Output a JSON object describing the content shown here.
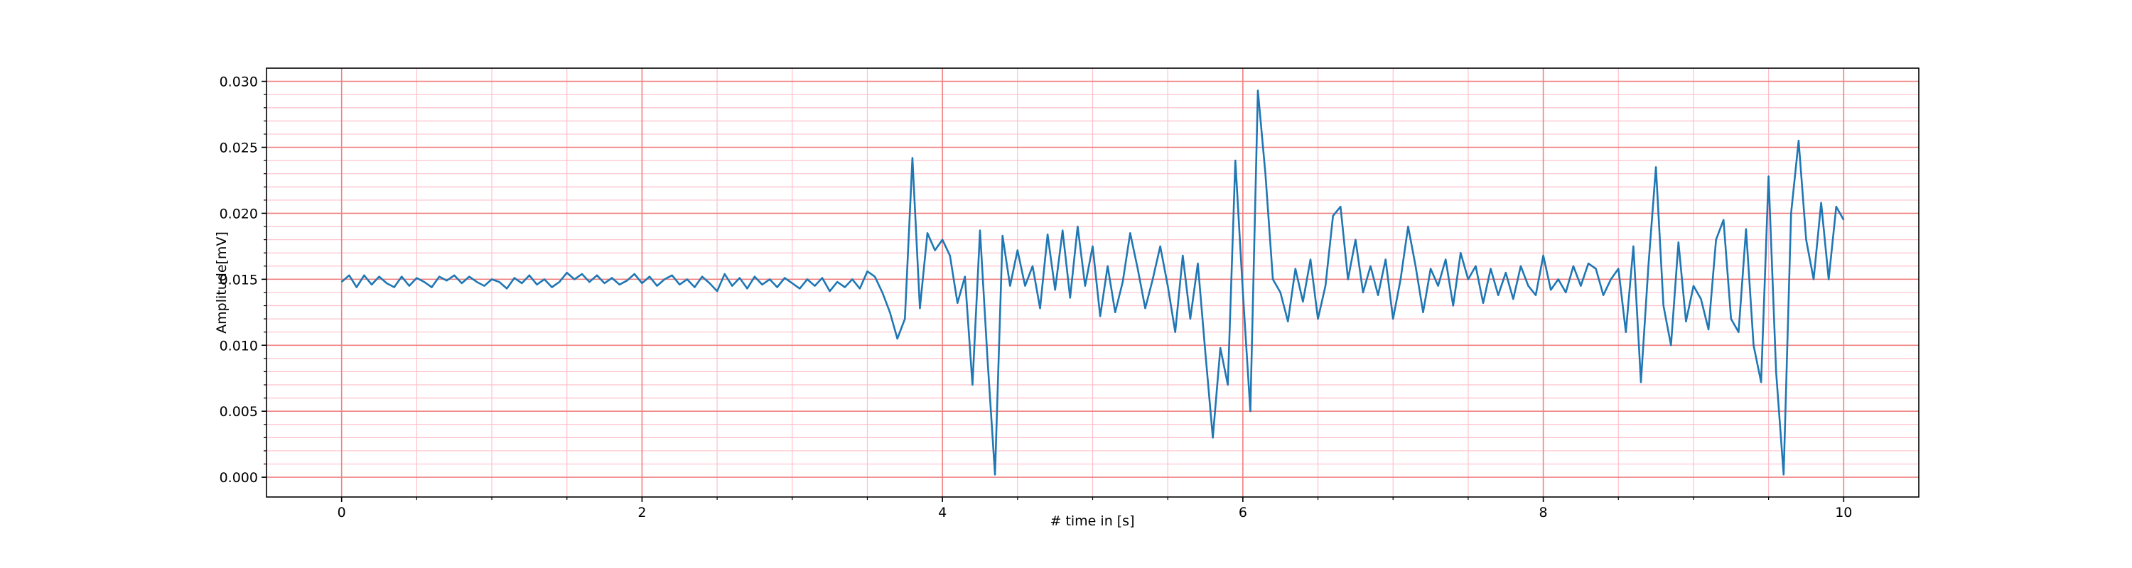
{
  "chart_data": {
    "type": "line",
    "xlabel": "# time in [s]",
    "ylabel": "Amplitude[mV]",
    "x": [
      0,
      0.05,
      0.1,
      0.15,
      0.2,
      0.25,
      0.3,
      0.35,
      0.4,
      0.45,
      0.5,
      0.55,
      0.6,
      0.65,
      0.7,
      0.75,
      0.8,
      0.85,
      0.9,
      0.95,
      1,
      1.05,
      1.1,
      1.15,
      1.2,
      1.25,
      1.3,
      1.35,
      1.4,
      1.45,
      1.5,
      1.55,
      1.6,
      1.65,
      1.7,
      1.75,
      1.8,
      1.85,
      1.9,
      1.95,
      2,
      2.05,
      2.1,
      2.15,
      2.2,
      2.25,
      2.3,
      2.35,
      2.4,
      2.45,
      2.5,
      2.55,
      2.6,
      2.65,
      2.7,
      2.75,
      2.8,
      2.85,
      2.9,
      2.95,
      3,
      3.05,
      3.1,
      3.15,
      3.2,
      3.25,
      3.3,
      3.35,
      3.4,
      3.45,
      3.5,
      3.55,
      3.6,
      3.65,
      3.7,
      3.75,
      3.8,
      3.85,
      3.9,
      3.95,
      4,
      4.05,
      4.1,
      4.15,
      4.2,
      4.25,
      4.3,
      4.35,
      4.4,
      4.45,
      4.5,
      4.55,
      4.6,
      4.65,
      4.7,
      4.75,
      4.8,
      4.85,
      4.9,
      4.95,
      5,
      5.05,
      5.1,
      5.15,
      5.2,
      5.25,
      5.3,
      5.35,
      5.4,
      5.45,
      5.5,
      5.55,
      5.6,
      5.65,
      5.7,
      5.75,
      5.8,
      5.85,
      5.9,
      5.95,
      6,
      6.05,
      6.1,
      6.15,
      6.2,
      6.25,
      6.3,
      6.35,
      6.4,
      6.45,
      6.5,
      6.55,
      6.6,
      6.65,
      6.7,
      6.75,
      6.8,
      6.85,
      6.9,
      6.95,
      7,
      7.05,
      7.1,
      7.15,
      7.2,
      7.25,
      7.3,
      7.35,
      7.4,
      7.45,
      7.5,
      7.55,
      7.6,
      7.65,
      7.7,
      7.75,
      7.8,
      7.85,
      7.9,
      7.95,
      8,
      8.05,
      8.1,
      8.15,
      8.2,
      8.25,
      8.3,
      8.35,
      8.4,
      8.45,
      8.5,
      8.55,
      8.6,
      8.65,
      8.7,
      8.75,
      8.8,
      8.85,
      8.9,
      8.95,
      9,
      9.05,
      9.1,
      9.15,
      9.2,
      9.25,
      9.3,
      9.35,
      9.4,
      9.45,
      9.5,
      9.55,
      9.6,
      9.65,
      9.7,
      9.75,
      9.8,
      9.85,
      9.9,
      9.95,
      10
    ],
    "series": [
      {
        "color": "#1f77b4",
        "values": [
          0.0148,
          0.0153,
          0.0144,
          0.0153,
          0.0146,
          0.0152,
          0.0147,
          0.0144,
          0.0152,
          0.0145,
          0.0151,
          0.0148,
          0.0144,
          0.0152,
          0.0149,
          0.0153,
          0.0147,
          0.0152,
          0.0148,
          0.0145,
          0.015,
          0.0148,
          0.0143,
          0.0151,
          0.0147,
          0.0153,
          0.0146,
          0.015,
          0.0144,
          0.0148,
          0.0155,
          0.015,
          0.0154,
          0.0148,
          0.0153,
          0.0147,
          0.0151,
          0.0146,
          0.0149,
          0.0154,
          0.0147,
          0.0152,
          0.0145,
          0.015,
          0.0153,
          0.0146,
          0.015,
          0.0144,
          0.0152,
          0.0147,
          0.0141,
          0.0154,
          0.0145,
          0.0151,
          0.0143,
          0.0152,
          0.0146,
          0.015,
          0.0144,
          0.0151,
          0.0147,
          0.0143,
          0.015,
          0.0145,
          0.0151,
          0.0141,
          0.0148,
          0.0144,
          0.015,
          0.0143,
          0.0156,
          0.0152,
          0.014,
          0.0125,
          0.0105,
          0.012,
          0.0242,
          0.0128,
          0.0185,
          0.0172,
          0.018,
          0.0168,
          0.0132,
          0.0152,
          0.007,
          0.0187,
          0.009,
          0.0002,
          0.0183,
          0.0145,
          0.0172,
          0.0145,
          0.016,
          0.0128,
          0.0184,
          0.0142,
          0.0187,
          0.0136,
          0.019,
          0.0145,
          0.0175,
          0.0122,
          0.016,
          0.0125,
          0.0148,
          0.0185,
          0.0158,
          0.0128,
          0.015,
          0.0175,
          0.0145,
          0.011,
          0.0168,
          0.012,
          0.0162,
          0.0095,
          0.003,
          0.0098,
          0.007,
          0.024,
          0.014,
          0.005,
          0.0293,
          0.023,
          0.015,
          0.014,
          0.0118,
          0.0158,
          0.0133,
          0.0165,
          0.012,
          0.0145,
          0.0198,
          0.0205,
          0.015,
          0.018,
          0.014,
          0.016,
          0.0138,
          0.0165,
          0.012,
          0.015,
          0.019,
          0.016,
          0.0125,
          0.0158,
          0.0145,
          0.0165,
          0.013,
          0.017,
          0.015,
          0.016,
          0.0132,
          0.0158,
          0.0138,
          0.0155,
          0.0135,
          0.016,
          0.0145,
          0.0138,
          0.0168,
          0.0142,
          0.015,
          0.014,
          0.016,
          0.0145,
          0.0162,
          0.0158,
          0.0138,
          0.015,
          0.0158,
          0.011,
          0.0175,
          0.0072,
          0.016,
          0.0235,
          0.013,
          0.01,
          0.0178,
          0.0118,
          0.0145,
          0.0135,
          0.0112,
          0.018,
          0.0195,
          0.012,
          0.011,
          0.0188,
          0.01,
          0.0072,
          0.0228,
          0.008,
          0.0002,
          0.02,
          0.0255,
          0.018,
          0.015,
          0.0208,
          0.015,
          0.0205,
          0.0195
        ]
      }
    ],
    "xlim": [
      -0.5,
      10.5
    ],
    "ylim": [
      -0.0015,
      0.031
    ],
    "xticks": [
      0,
      2,
      4,
      6,
      8,
      10
    ],
    "yticks": [
      {
        "value": 0,
        "label": "0.000"
      },
      0.005,
      {
        "value": 0.01,
        "label": "0.010"
      },
      0.015,
      {
        "value": 0.02,
        "label": "0.020"
      },
      0.025,
      {
        "value": 0.03,
        "label": "0.030"
      }
    ],
    "xminorticks": [
      0.5,
      1,
      1.5,
      2.5,
      3,
      3.5,
      4.5,
      5,
      5.5,
      6.5,
      7,
      7.5,
      8.5,
      9,
      9.5
    ],
    "yminorticks": [
      0.001,
      0.002,
      0.003,
      0.004,
      0.006,
      0.007,
      0.008,
      0.009,
      0.011,
      0.012,
      0.013,
      0.014,
      0.016,
      0.017,
      0.018,
      0.019,
      0.021,
      0.022,
      0.023,
      0.024,
      0.026,
      0.027,
      0.028,
      0.029
    ],
    "grid": true,
    "minor_grid": true
  }
}
